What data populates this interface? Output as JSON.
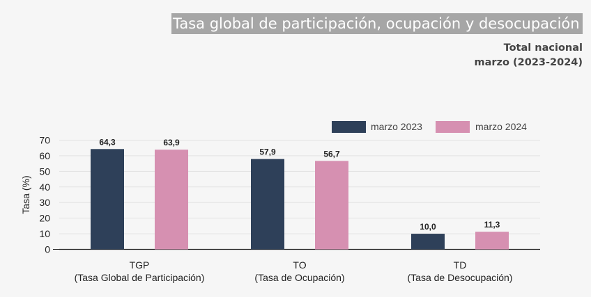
{
  "header": {
    "title": "Tasa global de participación, ocupación y desocupación",
    "subtitle_line1": "Total nacional",
    "subtitle_line2": "marzo (2023-2024)"
  },
  "colors": {
    "series_2023": "#2e4059",
    "series_2024": "#d690b1",
    "title_bg": "#a6a6a6"
  },
  "chart_data": {
    "type": "bar",
    "categories": [
      "TGP",
      "TO",
      "TD"
    ],
    "category_sublabels": [
      "(Tasa Global de Participación)",
      "(Tasa de Ocupación)",
      "(Tasa de Desocupación)"
    ],
    "series": [
      {
        "name": "marzo 2023",
        "values": [
          64.3,
          57.9,
          10.0
        ],
        "labels": [
          "64,3",
          "57,9",
          "10,0"
        ]
      },
      {
        "name": "marzo 2024",
        "values": [
          63.9,
          56.7,
          11.3
        ],
        "labels": [
          "63,9",
          "56,7",
          "11,3"
        ]
      }
    ],
    "ylabel": "Tasa (%)",
    "ylim": [
      0,
      70
    ],
    "yticks": [
      0,
      10,
      20,
      30,
      40,
      50,
      60,
      70
    ],
    "grid": true,
    "legend_position": "top-right"
  }
}
